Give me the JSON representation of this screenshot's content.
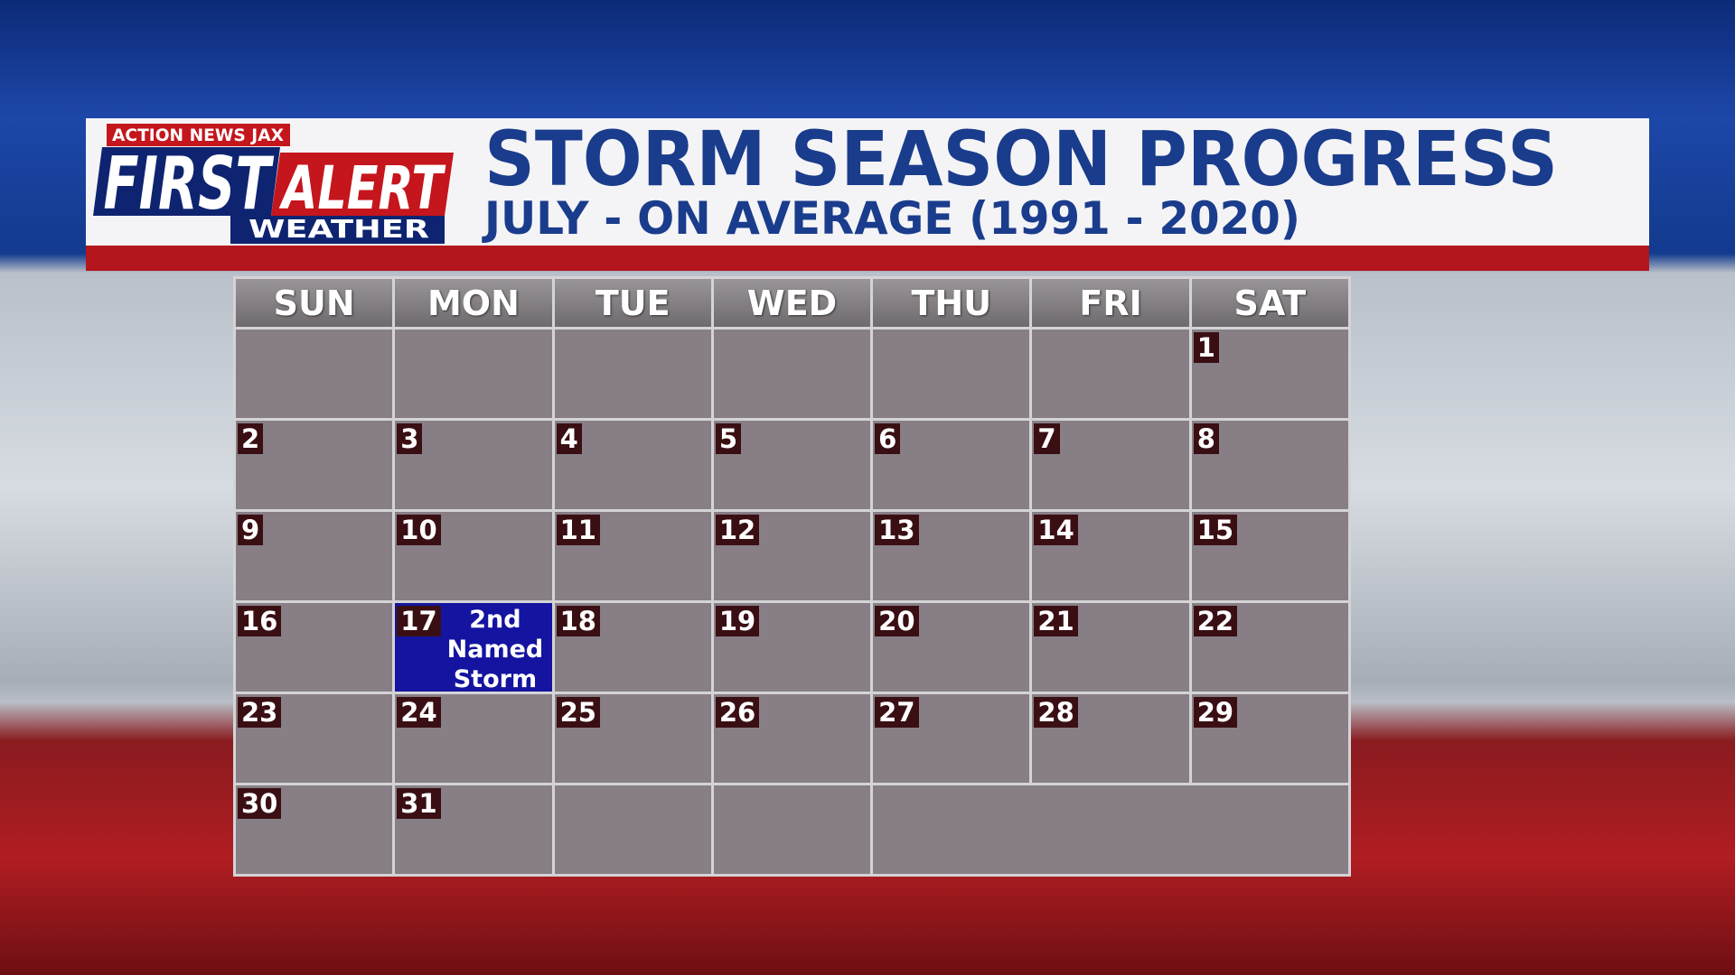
{
  "logo": {
    "station": "ACTION NEWS JAX",
    "first": "FIRST",
    "alert": "ALERT",
    "weather": "WEATHER"
  },
  "header": {
    "title": "STORM SEASON PROGRESS",
    "subtitle": "JULY - ON AVERAGE (1991 - 2020)"
  },
  "calendar": {
    "days": [
      "SUN",
      "MON",
      "TUE",
      "WED",
      "THU",
      "FRI",
      "SAT"
    ],
    "weeks": [
      [
        null,
        null,
        null,
        null,
        null,
        null,
        1
      ],
      [
        2,
        3,
        4,
        5,
        6,
        7,
        8
      ],
      [
        9,
        10,
        11,
        12,
        13,
        14,
        15
      ],
      [
        16,
        {
          "day": 17,
          "note": "2nd Named Storm"
        },
        18,
        19,
        20,
        21,
        22
      ],
      [
        23,
        24,
        25,
        26,
        27,
        28,
        29
      ],
      [
        30,
        31,
        null,
        null
      ]
    ]
  }
}
